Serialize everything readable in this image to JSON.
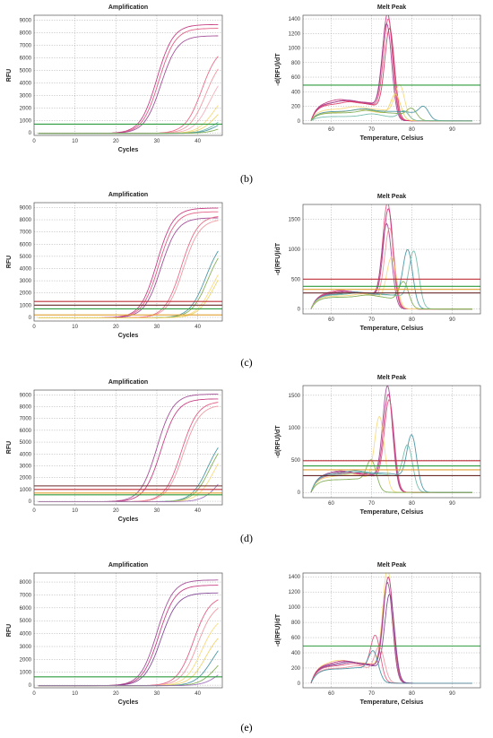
{
  "panel_labels": [
    "(b)",
    "(c)",
    "(d)",
    "(e)"
  ],
  "chart_data": [
    {
      "type": "line",
      "panel": "(b)",
      "title": "Amplification",
      "xlabel": "Cycles",
      "ylabel": "RFU",
      "xlim": [
        0,
        46
      ],
      "ylim": [
        -200,
        9400
      ],
      "xticks": [
        0,
        10,
        20,
        30,
        40
      ],
      "yticks": [
        0,
        1000,
        2000,
        3000,
        4000,
        5000,
        6000,
        7000,
        8000,
        9000
      ],
      "grid": true,
      "series": [
        {
          "color": "#c2307a",
          "values": {
            "plateau": 8700,
            "ct": 27
          }
        },
        {
          "color": "#e0507a",
          "values": {
            "plateau": 8400,
            "ct": 27.5
          }
        },
        {
          "color": "#9b3f8f",
          "values": {
            "plateau": 7800,
            "ct": 28
          }
        },
        {
          "color": "#e8607e",
          "values": {
            "plateau": 7000,
            "ct": 38
          }
        },
        {
          "color": "#f0909a",
          "values": {
            "plateau": 6300,
            "ct": 39
          }
        },
        {
          "color": "#f4a8b8",
          "values": {
            "plateau": 5200,
            "ct": 40
          }
        },
        {
          "color": "#f7d774",
          "values": {
            "plateau": 3600,
            "ct": 41
          }
        },
        {
          "color": "#ecd060",
          "values": {
            "plateau": 2700,
            "ct": 41.5
          }
        },
        {
          "color": "#6bb7a6",
          "values": {
            "plateau": 1800,
            "ct": 42
          }
        },
        {
          "color": "#3d8fa0",
          "values": {
            "plateau": 1500,
            "ct": 42.5
          }
        },
        {
          "color": "#79a84a",
          "values": {
            "plateau": 900,
            "ct": 43
          }
        }
      ],
      "thresholds": [
        {
          "value": 700,
          "color": "#2e9b3e"
        }
      ]
    },
    {
      "type": "line",
      "panel": "(b)",
      "title": "Melt Peak",
      "xlabel": "Temperature, Celsius",
      "ylabel": "-d(RFU)/dT",
      "xlim": [
        53,
        97
      ],
      "ylim": [
        -40,
        1450
      ],
      "xticks": [
        60,
        70,
        80,
        90
      ],
      "yticks": [
        0,
        200,
        400,
        600,
        800,
        1000,
        1200,
        1400
      ],
      "grid": true,
      "series": [
        {
          "color": "#c2307a",
          "values": {
            "peak_t": 74,
            "peak": 1400,
            "base": 260
          }
        },
        {
          "color": "#e0507a",
          "values": {
            "peak_t": 74.2,
            "peak": 1330,
            "base": 240
          }
        },
        {
          "color": "#9b3f8f",
          "values": {
            "peak_t": 73.8,
            "peak": 1260,
            "base": 250
          }
        },
        {
          "color": "#d83060",
          "values": {
            "peak_t": 74.5,
            "peak": 1200,
            "base": 230
          }
        },
        {
          "color": "#f7d774",
          "values": {
            "peak_t": 77,
            "peak": 450,
            "base": 160
          }
        },
        {
          "color": "#ecd060",
          "values": {
            "peak_t": 76,
            "peak": 330,
            "base": 120
          }
        },
        {
          "color": "#3d8fa0",
          "values": {
            "peak_t": 83,
            "peak": 160,
            "base": 130
          }
        },
        {
          "color": "#79a84a",
          "values": {
            "peak_t": 80,
            "peak": 140,
            "base": 110
          }
        },
        {
          "color": "#6bb7a6",
          "values": {
            "peak_t": 78,
            "peak": 120,
            "base": 60
          }
        }
      ],
      "thresholds": [
        {
          "value": 490,
          "color": "#2e9b3e"
        }
      ]
    },
    {
      "type": "line",
      "panel": "(c)",
      "title": "Amplification",
      "xlabel": "Cycles",
      "ylabel": "RFU",
      "xlim": [
        0,
        46
      ],
      "ylim": [
        -300,
        9400
      ],
      "xticks": [
        0,
        10,
        20,
        30,
        40
      ],
      "yticks": [
        0,
        1000,
        2000,
        3000,
        4000,
        5000,
        6000,
        7000,
        8000,
        9000
      ],
      "grid": true,
      "series": [
        {
          "color": "#c2307a",
          "values": {
            "plateau": 9000,
            "ct": 27
          }
        },
        {
          "color": "#e0507a",
          "values": {
            "plateau": 8700,
            "ct": 27.5
          }
        },
        {
          "color": "#9b3f8f",
          "values": {
            "plateau": 8200,
            "ct": 28
          }
        },
        {
          "color": "#e8607e",
          "values": {
            "plateau": 8400,
            "ct": 33
          }
        },
        {
          "color": "#f0909a",
          "values": {
            "plateau": 8100,
            "ct": 33.5
          }
        },
        {
          "color": "#3d8fa0",
          "values": {
            "plateau": 6700,
            "ct": 39
          }
        },
        {
          "color": "#79a84a",
          "values": {
            "plateau": 6300,
            "ct": 39.5
          }
        },
        {
          "color": "#f7d774",
          "values": {
            "plateau": 5200,
            "ct": 40.5
          }
        },
        {
          "color": "#ecd060",
          "values": {
            "plateau": 5000,
            "ct": 41
          }
        }
      ],
      "thresholds": [
        {
          "value": 1300,
          "color": "#c0303a"
        },
        {
          "value": 1000,
          "color": "#6a2a2a"
        },
        {
          "value": 700,
          "color": "#2e9b3e"
        },
        {
          "value": 200,
          "color": "#e0a030"
        }
      ]
    },
    {
      "type": "line",
      "panel": "(c)",
      "title": "Melt Peak",
      "xlabel": "Temperature, Celsius",
      "ylabel": "-d(RFU)/dT",
      "xlim": [
        53,
        97
      ],
      "ylim": [
        -80,
        1750
      ],
      "xticks": [
        60,
        70,
        80,
        90
      ],
      "yticks": [
        0,
        500,
        1000,
        1500
      ],
      "grid": true,
      "series": [
        {
          "color": "#e0507a",
          "values": {
            "peak_t": 74,
            "peak": 1700,
            "base": 280
          }
        },
        {
          "color": "#c2307a",
          "values": {
            "peak_t": 74.2,
            "peak": 1600,
            "base": 270
          }
        },
        {
          "color": "#9b3f8f",
          "values": {
            "peak_t": 73.8,
            "peak": 1350,
            "base": 260
          }
        },
        {
          "color": "#f0909a",
          "values": {
            "peak_t": 74.5,
            "peak": 1280,
            "base": 250
          }
        },
        {
          "color": "#3d8fa0",
          "values": {
            "peak_t": 79,
            "peak": 920,
            "base": 250
          }
        },
        {
          "color": "#6bb7a6",
          "values": {
            "peak_t": 80.5,
            "peak": 900,
            "base": 240
          }
        },
        {
          "color": "#f7d774",
          "values": {
            "peak_t": 75,
            "peak": 800,
            "base": 220
          }
        },
        {
          "color": "#79a84a",
          "values": {
            "peak_t": 78,
            "peak": 400,
            "base": 200
          }
        }
      ],
      "thresholds": [
        {
          "value": 500,
          "color": "#c0303a"
        },
        {
          "value": 380,
          "color": "#2e9b3e"
        },
        {
          "value": 330,
          "color": "#e0a030"
        },
        {
          "value": 270,
          "color": "#6a2a2a"
        }
      ]
    },
    {
      "type": "line",
      "panel": "(d)",
      "title": "Amplification",
      "xlabel": "Cycles",
      "ylabel": "RFU",
      "xlim": [
        0,
        46
      ],
      "ylim": [
        -300,
        9400
      ],
      "xticks": [
        0,
        10,
        20,
        30,
        40
      ],
      "yticks": [
        0,
        1000,
        2000,
        3000,
        4000,
        5000,
        6000,
        7000,
        8000,
        9000
      ],
      "grid": true,
      "series": [
        {
          "color": "#9b3f8f",
          "values": {
            "plateau": 9100,
            "ct": 27
          }
        },
        {
          "color": "#c2307a",
          "values": {
            "plateau": 8700,
            "ct": 28
          }
        },
        {
          "color": "#e0507a",
          "values": {
            "plateau": 8500,
            "ct": 33
          }
        },
        {
          "color": "#f0909a",
          "values": {
            "plateau": 8200,
            "ct": 33.5
          }
        },
        {
          "color": "#3d8fa0",
          "values": {
            "plateau": 5900,
            "ct": 39.5
          }
        },
        {
          "color": "#79a84a",
          "values": {
            "plateau": 5600,
            "ct": 40
          }
        },
        {
          "color": "#f7d774",
          "values": {
            "plateau": 5200,
            "ct": 41
          }
        },
        {
          "color": "#9a6ab8",
          "values": {
            "plateau": 3400,
            "ct": 42.5
          }
        }
      ],
      "thresholds": [
        {
          "value": 1300,
          "color": "#6a2a2a"
        },
        {
          "value": 1000,
          "color": "#c0303a"
        },
        {
          "value": 700,
          "color": "#e0a030"
        },
        {
          "value": 550,
          "color": "#2e9b3e"
        }
      ]
    },
    {
      "type": "line",
      "panel": "(d)",
      "title": "Melt Peak",
      "xlabel": "Temperature, Celsius",
      "ylabel": "-d(RFU)/dT",
      "xlim": [
        53,
        97
      ],
      "ylim": [
        -80,
        1650
      ],
      "xticks": [
        60,
        70,
        80,
        90
      ],
      "yticks": [
        0,
        500,
        1000,
        1500
      ],
      "grid": true,
      "series": [
        {
          "color": "#9b3f8f",
          "values": {
            "peak_t": 74,
            "peak": 1560,
            "base": 300
          }
        },
        {
          "color": "#c2307a",
          "values": {
            "peak_t": 74.2,
            "peak": 1430,
            "base": 290
          }
        },
        {
          "color": "#e0507a",
          "values": {
            "peak_t": 74.4,
            "peak": 1350,
            "base": 270
          }
        },
        {
          "color": "#f7d774",
          "values": {
            "peak_t": 72,
            "peak": 1100,
            "base": 250
          }
        },
        {
          "color": "#3d8fa0",
          "values": {
            "peak_t": 80,
            "peak": 800,
            "base": 300
          }
        },
        {
          "color": "#6bb7a6",
          "values": {
            "peak_t": 79,
            "peak": 650,
            "base": 280
          }
        },
        {
          "color": "#79a84a",
          "values": {
            "peak_t": 70,
            "peak": 420,
            "base": 200
          }
        }
      ],
      "thresholds": [
        {
          "value": 490,
          "color": "#c0303a"
        },
        {
          "value": 410,
          "color": "#2e9b3e"
        },
        {
          "value": 350,
          "color": "#e0a030"
        },
        {
          "value": 260,
          "color": "#6a2a2a"
        }
      ]
    },
    {
      "type": "line",
      "panel": "(e)",
      "title": "Amplification",
      "xlabel": "Cycles",
      "ylabel": "RFU",
      "xlim": [
        0,
        46
      ],
      "ylim": [
        -200,
        8700
      ],
      "xticks": [
        0,
        10,
        20,
        30,
        40
      ],
      "yticks": [
        0,
        1000,
        2000,
        3000,
        4000,
        5000,
        6000,
        7000,
        8000
      ],
      "grid": true,
      "series": [
        {
          "color": "#9b3f8f",
          "values": {
            "plateau": 8200,
            "ct": 27
          }
        },
        {
          "color": "#c2307a",
          "values": {
            "plateau": 7800,
            "ct": 27.5
          }
        },
        {
          "color": "#7a3a8f",
          "values": {
            "plateau": 7200,
            "ct": 28
          }
        },
        {
          "color": "#e0507a",
          "values": {
            "plateau": 7000,
            "ct": 36
          }
        },
        {
          "color": "#f0909a",
          "values": {
            "plateau": 6500,
            "ct": 37
          }
        },
        {
          "color": "#f7d774",
          "values": {
            "plateau": 5500,
            "ct": 38
          }
        },
        {
          "color": "#ecd060",
          "values": {
            "plateau": 4500,
            "ct": 39
          }
        },
        {
          "color": "#3d8fa0",
          "values": {
            "plateau": 4000,
            "ct": 40.5
          }
        },
        {
          "color": "#79a84a",
          "values": {
            "plateau": 2800,
            "ct": 41.5
          }
        },
        {
          "color": "#9a6ab8",
          "values": {
            "plateau": 1900,
            "ct": 42.5
          }
        }
      ],
      "thresholds": [
        {
          "value": 650,
          "color": "#2e9b3e"
        }
      ]
    },
    {
      "type": "line",
      "panel": "(e)",
      "title": "Melt Peak",
      "xlabel": "Temperature, Celsius",
      "ylabel": "-d(RFU)/dT",
      "xlim": [
        53,
        97
      ],
      "ylim": [
        -60,
        1450
      ],
      "xticks": [
        60,
        70,
        80,
        90
      ],
      "yticks": [
        0,
        200,
        400,
        600,
        800,
        1000,
        1200,
        1400
      ],
      "grid": true,
      "series": [
        {
          "color": "#f7d774",
          "values": {
            "peak_t": 74,
            "peak": 1430,
            "base": 270
          }
        },
        {
          "color": "#c2307a",
          "values": {
            "peak_t": 74.2,
            "peak": 1320,
            "base": 260
          }
        },
        {
          "color": "#9b3f8f",
          "values": {
            "peak_t": 74,
            "peak": 1250,
            "base": 250
          }
        },
        {
          "color": "#7a3a8f",
          "values": {
            "peak_t": 74.5,
            "peak": 1100,
            "base": 240
          }
        },
        {
          "color": "#e0507a",
          "values": {
            "peak_t": 71,
            "peak": 560,
            "base": 230
          }
        },
        {
          "color": "#f0909a",
          "values": {
            "peak_t": 72,
            "peak": 420,
            "base": 200
          }
        },
        {
          "color": "#3d8fa0",
          "values": {
            "peak_t": 70.5,
            "peak": 350,
            "base": 190
          }
        }
      ],
      "thresholds": [
        {
          "value": 490,
          "color": "#2e9b3e"
        }
      ]
    }
  ]
}
